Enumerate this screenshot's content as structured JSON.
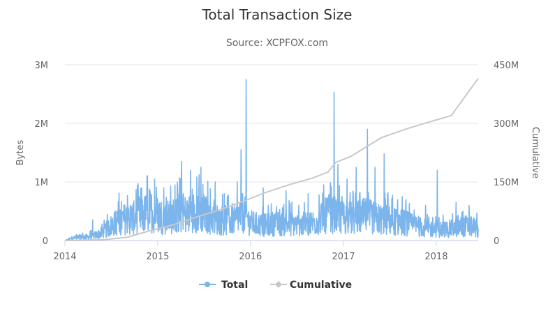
{
  "chart_data": {
    "type": "line",
    "title": "Total Transaction Size",
    "subtitle": "Source: XCPFOX.com",
    "x_ticks": [
      "2014",
      "2015",
      "2016",
      "2017",
      "2018"
    ],
    "xlim": [
      "2014-01-01",
      "2018-06-15"
    ],
    "y_left": {
      "label": "Bytes",
      "ticks": [
        "0",
        "1M",
        "2M",
        "3M"
      ],
      "tick_values": [
        0,
        1000000,
        2000000,
        3000000
      ],
      "range": [
        0,
        3000000
      ]
    },
    "y_right": {
      "label": "Cumulative",
      "ticks": [
        "0",
        "150M",
        "300M",
        "450M"
      ],
      "tick_values": [
        0,
        150000000,
        300000000,
        450000000
      ],
      "range": [
        0,
        450000000
      ]
    },
    "grid": true,
    "legend": {
      "position": "bottom-center",
      "items": [
        "Total",
        "Cumulative"
      ]
    },
    "series": [
      {
        "name": "Total",
        "axis": "left",
        "color": "#7cb5ec",
        "points": [
          [
            "2014-01-01",
            0
          ],
          [
            "2014-02-01",
            40000
          ],
          [
            "2014-03-01",
            60000
          ],
          [
            "2014-04-01",
            60000
          ],
          [
            "2014-05-01",
            90000
          ],
          [
            "2014-06-01",
            140000
          ],
          [
            "2014-07-01",
            250000
          ],
          [
            "2014-08-01",
            340000
          ],
          [
            "2014-09-01",
            370000
          ],
          [
            "2014-10-01",
            390000
          ],
          [
            "2014-11-01",
            430000
          ],
          [
            "2014-12-01",
            500000
          ],
          [
            "2015-01-01",
            440000
          ],
          [
            "2015-02-01",
            380000
          ],
          [
            "2015-03-01",
            420000
          ],
          [
            "2015-04-01",
            470000
          ],
          [
            "2015-05-01",
            440000
          ],
          [
            "2015-06-01",
            500000
          ],
          [
            "2015-07-01",
            460000
          ],
          [
            "2015-08-01",
            400000
          ],
          [
            "2015-09-01",
            350000
          ],
          [
            "2015-10-01",
            330000
          ],
          [
            "2015-11-01",
            340000
          ],
          [
            "2015-12-01",
            480000
          ],
          [
            "2016-01-01",
            300000
          ],
          [
            "2016-02-01",
            270000
          ],
          [
            "2016-03-01",
            260000
          ],
          [
            "2016-04-01",
            290000
          ],
          [
            "2016-05-01",
            280000
          ],
          [
            "2016-06-01",
            290000
          ],
          [
            "2016-07-01",
            270000
          ],
          [
            "2016-08-01",
            280000
          ],
          [
            "2016-09-01",
            300000
          ],
          [
            "2016-10-01",
            350000
          ],
          [
            "2016-11-01",
            450000
          ],
          [
            "2016-12-01",
            430000
          ],
          [
            "2017-01-01",
            400000
          ],
          [
            "2017-02-01",
            380000
          ],
          [
            "2017-03-01",
            400000
          ],
          [
            "2017-04-01",
            420000
          ],
          [
            "2017-05-01",
            380000
          ],
          [
            "2017-06-01",
            360000
          ],
          [
            "2017-07-01",
            340000
          ],
          [
            "2017-08-01",
            320000
          ],
          [
            "2017-09-01",
            300000
          ],
          [
            "2017-10-01",
            260000
          ],
          [
            "2017-11-01",
            230000
          ],
          [
            "2017-12-01",
            200000
          ],
          [
            "2018-01-01",
            200000
          ],
          [
            "2018-02-01",
            190000
          ],
          [
            "2018-03-01",
            200000
          ],
          [
            "2018-04-01",
            230000
          ],
          [
            "2018-05-01",
            250000
          ],
          [
            "2018-06-01",
            220000
          ],
          [
            "2018-06-15",
            200000
          ]
        ],
        "spikes": [
          [
            "2014-04-20",
            350000
          ],
          [
            "2014-09-15",
            600000
          ],
          [
            "2014-10-20",
            750000
          ],
          [
            "2014-11-20",
            1100000
          ],
          [
            "2014-12-20",
            1050000
          ],
          [
            "2015-01-25",
            900000
          ],
          [
            "2015-03-10",
            950000
          ],
          [
            "2015-04-05",
            1350000
          ],
          [
            "2015-05-10",
            1200000
          ],
          [
            "2015-06-20",
            1250000
          ],
          [
            "2015-08-15",
            1000000
          ],
          [
            "2015-09-20",
            800000
          ],
          [
            "2015-11-10",
            1000000
          ],
          [
            "2015-11-25",
            1550000
          ],
          [
            "2015-12-15",
            2750000
          ],
          [
            "2016-02-20",
            900000
          ],
          [
            "2016-05-20",
            850000
          ],
          [
            "2016-08-15",
            800000
          ],
          [
            "2016-10-15",
            950000
          ],
          [
            "2016-11-25",
            2530000
          ],
          [
            "2016-12-10",
            1300000
          ],
          [
            "2017-01-15",
            1050000
          ],
          [
            "2017-02-20",
            1250000
          ],
          [
            "2017-04-05",
            1900000
          ],
          [
            "2017-05-05",
            1250000
          ],
          [
            "2017-06-10",
            1480000
          ],
          [
            "2017-08-20",
            750000
          ],
          [
            "2017-11-20",
            600000
          ],
          [
            "2018-01-05",
            1200000
          ],
          [
            "2018-03-20",
            650000
          ],
          [
            "2018-05-10",
            600000
          ]
        ]
      },
      {
        "name": "Cumulative",
        "axis": "right",
        "color": "#c8c8c8",
        "points": [
          [
            "2014-01-01",
            0
          ],
          [
            "2014-06-01",
            2000000
          ],
          [
            "2014-09-01",
            8000000
          ],
          [
            "2014-12-01",
            25000000
          ],
          [
            "2015-03-01",
            40000000
          ],
          [
            "2015-06-01",
            60000000
          ],
          [
            "2015-09-01",
            78000000
          ],
          [
            "2015-12-01",
            100000000
          ],
          [
            "2016-03-01",
            123000000
          ],
          [
            "2016-06-01",
            143000000
          ],
          [
            "2016-09-01",
            160000000
          ],
          [
            "2016-11-01",
            175000000
          ],
          [
            "2016-12-01",
            200000000
          ],
          [
            "2017-02-01",
            216000000
          ],
          [
            "2017-04-01",
            240000000
          ],
          [
            "2017-06-01",
            264000000
          ],
          [
            "2017-09-01",
            285000000
          ],
          [
            "2017-12-01",
            303000000
          ],
          [
            "2018-03-01",
            320000000
          ],
          [
            "2018-06-15",
            415000000
          ]
        ]
      }
    ]
  }
}
